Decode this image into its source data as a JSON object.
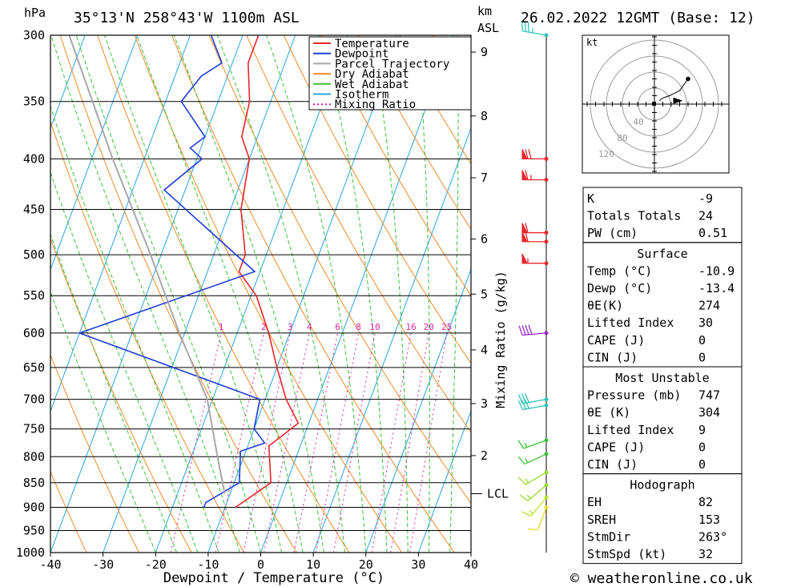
{
  "header": {
    "hpa_unit": "hPa",
    "location": "35°13'N  258°43'W  1100m  ASL",
    "km_unit": "km",
    "asl_unit": "ASL",
    "datetime": "26.02.2022  12GMT  (Base: 12)"
  },
  "footer": {
    "credit": "© weatheronline.co.uk"
  },
  "chart_data": {
    "type": "skew-t",
    "xlabel": "Dewpoint / Temperature (°C)",
    "mixing_ratio_label": "Mixing Ratio (g/kg)",
    "xlim": [
      -40,
      40
    ],
    "plim": [
      300,
      1000
    ],
    "x_ticks": [
      "-40",
      "-30",
      "-20",
      "-10",
      "0",
      "10",
      "20",
      "30",
      "40"
    ],
    "pressure_ticks": [
      {
        "p": 300,
        "label": "300"
      },
      {
        "p": 350,
        "label": "350"
      },
      {
        "p": 400,
        "label": "400"
      },
      {
        "p": 450,
        "label": "450"
      },
      {
        "p": 500,
        "label": "500"
      },
      {
        "p": 550,
        "label": "550"
      },
      {
        "p": 600,
        "label": "600"
      },
      {
        "p": 650,
        "label": "650"
      },
      {
        "p": 700,
        "label": "700"
      },
      {
        "p": 750,
        "label": "750"
      },
      {
        "p": 800,
        "label": "800"
      },
      {
        "p": 850,
        "label": "850"
      },
      {
        "p": 900,
        "label": "900"
      },
      {
        "p": 950,
        "label": "950"
      },
      {
        "p": 1000,
        "label": "1000"
      }
    ],
    "km_ticks": [
      {
        "label": "9",
        "p": 312
      },
      {
        "label": "8",
        "p": 362
      },
      {
        "label": "7",
        "p": 418
      },
      {
        "label": "6",
        "p": 482
      },
      {
        "label": "5",
        "p": 548
      },
      {
        "label": "4",
        "p": 624
      },
      {
        "label": "3",
        "p": 707
      },
      {
        "label": "2",
        "p": 798
      }
    ],
    "lcl": {
      "label": "LCL",
      "p": 872
    },
    "mixing_ratio_values": [
      "1",
      "2",
      "3",
      "4",
      "6",
      "8",
      "10",
      "16",
      "20",
      "25"
    ],
    "legend": [
      {
        "label": "Temperature",
        "color": "#e8262b"
      },
      {
        "label": "Dewpoint",
        "color": "#1f3fd6"
      },
      {
        "label": "Parcel Trajectory",
        "color": "#a8a8a8"
      },
      {
        "label": "Dry Adiabat",
        "color": "#f08a28"
      },
      {
        "label": "Wet Adiabat",
        "color": "#3cc13c"
      },
      {
        "label": "Isotherm",
        "color": "#29a4e0"
      },
      {
        "label": "Mixing Ratio",
        "color": "#d6269b"
      }
    ],
    "series": [
      {
        "name": "Temperature",
        "color": "#e8262b",
        "points": [
          [
            300,
            -37
          ],
          [
            320,
            -37
          ],
          [
            350,
            -34
          ],
          [
            380,
            -33
          ],
          [
            400,
            -30
          ],
          [
            450,
            -28
          ],
          [
            500,
            -24
          ],
          [
            520,
            -24
          ],
          [
            550,
            -19
          ],
          [
            600,
            -14
          ],
          [
            650,
            -10
          ],
          [
            700,
            -6
          ],
          [
            740,
            -2
          ],
          [
            760,
            -4
          ],
          [
            780,
            -6
          ],
          [
            850,
            -3
          ],
          [
            900,
            -8
          ]
        ]
      },
      {
        "name": "Dewpoint",
        "color": "#1f3fd6",
        "points": [
          [
            300,
            -46
          ],
          [
            320,
            -42
          ],
          [
            330,
            -45
          ],
          [
            350,
            -47
          ],
          [
            380,
            -40
          ],
          [
            390,
            -42
          ],
          [
            400,
            -39
          ],
          [
            430,
            -44
          ],
          [
            520,
            -21
          ],
          [
            600,
            -50
          ],
          [
            700,
            -11
          ],
          [
            750,
            -10
          ],
          [
            775,
            -7
          ],
          [
            790,
            -11
          ],
          [
            850,
            -9
          ],
          [
            890,
            -14
          ],
          [
            900,
            -14
          ]
        ]
      },
      {
        "name": "Parcel Trajectory",
        "color": "#a8a8a8",
        "points": [
          [
            300,
            -73
          ],
          [
            400,
            -56
          ],
          [
            500,
            -42
          ],
          [
            600,
            -31
          ],
          [
            700,
            -21
          ],
          [
            800,
            -15
          ],
          [
            872,
            -11
          ]
        ]
      }
    ],
    "wind_profile": [
      {
        "p": 300,
        "color": "#2ec4b6",
        "dir": 280,
        "kt": 35
      },
      {
        "p": 400,
        "color": "#e8262b",
        "dir": 270,
        "kt": 70
      },
      {
        "p": 420,
        "color": "#e8262b",
        "dir": 270,
        "kt": 65
      },
      {
        "p": 475,
        "color": "#e8262b",
        "dir": 270,
        "kt": 60
      },
      {
        "p": 485,
        "color": "#e8262b",
        "dir": 270,
        "kt": 60
      },
      {
        "p": 510,
        "color": "#e8262b",
        "dir": 270,
        "kt": 55
      },
      {
        "p": 600,
        "color": "#9a2bd0",
        "dir": 265,
        "kt": 40
      },
      {
        "p": 700,
        "color": "#2ec4b6",
        "dir": 260,
        "kt": 30
      },
      {
        "p": 710,
        "color": "#2ec4b6",
        "dir": 260,
        "kt": 30
      },
      {
        "p": 770,
        "color": "#3cc13c",
        "dir": 250,
        "kt": 15
      },
      {
        "p": 795,
        "color": "#3cc13c",
        "dir": 245,
        "kt": 15
      },
      {
        "p": 830,
        "color": "#9ad82b",
        "dir": 240,
        "kt": 15
      },
      {
        "p": 855,
        "color": "#9ad82b",
        "dir": 230,
        "kt": 15
      },
      {
        "p": 880,
        "color": "#b8e02b",
        "dir": 220,
        "kt": 15
      },
      {
        "p": 900,
        "color": "#e8d82b",
        "dir": 200,
        "kt": 10
      }
    ],
    "hodograph": {
      "unit": "kt",
      "ring_labels": [
        "40",
        "80",
        "120"
      ],
      "path_kt": [
        [
          6,
          -4
        ],
        [
          8,
          -6
        ],
        [
          12,
          -8
        ],
        [
          18,
          -10
        ],
        [
          22,
          -12
        ],
        [
          30,
          -16
        ],
        [
          40,
          -30
        ]
      ],
      "storm_motion_kt": [
        30,
        -4
      ]
    }
  },
  "indices": {
    "general": [
      {
        "name": "K",
        "value": "-9"
      },
      {
        "name": "Totals Totals",
        "value": "24"
      },
      {
        "name": "PW (cm)",
        "value": "0.51"
      }
    ],
    "surface": {
      "title": "Surface",
      "rows": [
        {
          "name": "Temp (°C)",
          "value": "-10.9"
        },
        {
          "name": "Dewp (°C)",
          "value": "-13.4"
        },
        {
          "name": "θE(K)",
          "value": "274"
        },
        {
          "name": "Lifted Index",
          "value": "30"
        },
        {
          "name": "CAPE (J)",
          "value": "0"
        },
        {
          "name": "CIN (J)",
          "value": "0"
        }
      ]
    },
    "most_unstable": {
      "title": "Most Unstable",
      "rows": [
        {
          "name": "Pressure (mb)",
          "value": "747"
        },
        {
          "name": "θE (K)",
          "value": "304"
        },
        {
          "name": "Lifted Index",
          "value": "9"
        },
        {
          "name": "CAPE (J)",
          "value": "0"
        },
        {
          "name": "CIN (J)",
          "value": "0"
        }
      ]
    },
    "hodograph": {
      "title": "Hodograph",
      "rows": [
        {
          "name": "EH",
          "value": "82"
        },
        {
          "name": "SREH",
          "value": "153"
        },
        {
          "name": "StmDir",
          "value": "263°"
        },
        {
          "name": "StmSpd (kt)",
          "value": "32"
        }
      ]
    }
  }
}
